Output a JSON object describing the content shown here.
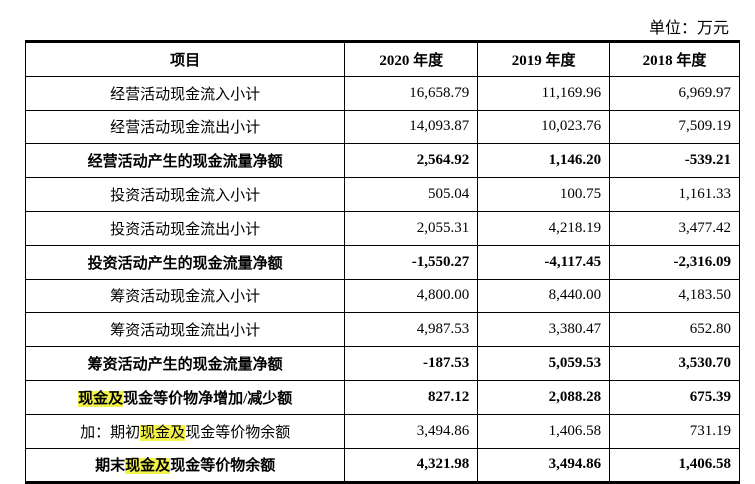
{
  "unit": "单位：万元",
  "table": {
    "headers": [
      "项目",
      "2020 年度",
      "2019 年度",
      "2018 年度"
    ],
    "rows": [
      {
        "label": [
          {
            "text": "经营活动现金流入小计"
          }
        ],
        "bold": false,
        "values": [
          "16,658.79",
          "11,169.96",
          "6,969.97"
        ]
      },
      {
        "label": [
          {
            "text": "经营活动现金流出小计"
          }
        ],
        "bold": false,
        "values": [
          "14,093.87",
          "10,023.76",
          "7,509.19"
        ]
      },
      {
        "label": [
          {
            "text": "经营活动产生的现金流量净额"
          }
        ],
        "bold": true,
        "values": [
          "2,564.92",
          "1,146.20",
          "-539.21"
        ]
      },
      {
        "label": [
          {
            "text": "投资活动现金流入小计"
          }
        ],
        "bold": false,
        "values": [
          "505.04",
          "100.75",
          "1,161.33"
        ]
      },
      {
        "label": [
          {
            "text": "投资活动现金流出小计"
          }
        ],
        "bold": false,
        "values": [
          "2,055.31",
          "4,218.19",
          "3,477.42"
        ]
      },
      {
        "label": [
          {
            "text": "投资活动产生的现金流量净额"
          }
        ],
        "bold": true,
        "values": [
          "-1,550.27",
          "-4,117.45",
          "-2,316.09"
        ]
      },
      {
        "label": [
          {
            "text": "筹资活动现金流入小计"
          }
        ],
        "bold": false,
        "values": [
          "4,800.00",
          "8,440.00",
          "4,183.50"
        ]
      },
      {
        "label": [
          {
            "text": "筹资活动现金流出小计"
          }
        ],
        "bold": false,
        "values": [
          "4,987.53",
          "3,380.47",
          "652.80"
        ]
      },
      {
        "label": [
          {
            "text": "筹资活动产生的现金流量净额"
          }
        ],
        "bold": true,
        "values": [
          "-187.53",
          "5,059.53",
          "3,530.70"
        ]
      },
      {
        "label": [
          {
            "text": "现金及",
            "highlight": true
          },
          {
            "text": "现金等价物净增加/减少额"
          }
        ],
        "bold": true,
        "values": [
          "827.12",
          "2,088.28",
          "675.39"
        ]
      },
      {
        "label": [
          {
            "text": "加：期初"
          },
          {
            "text": "现金及",
            "highlight": true
          },
          {
            "text": "现金等价物余额"
          }
        ],
        "bold": false,
        "values": [
          "3,494.86",
          "1,406.58",
          "731.19"
        ]
      },
      {
        "label": [
          {
            "text": "期末"
          },
          {
            "text": "现金及",
            "highlight": true
          },
          {
            "text": "现金等价物余额"
          }
        ],
        "bold": true,
        "values": [
          "4,321.98",
          "3,494.86",
          "1,406.58"
        ]
      }
    ]
  }
}
